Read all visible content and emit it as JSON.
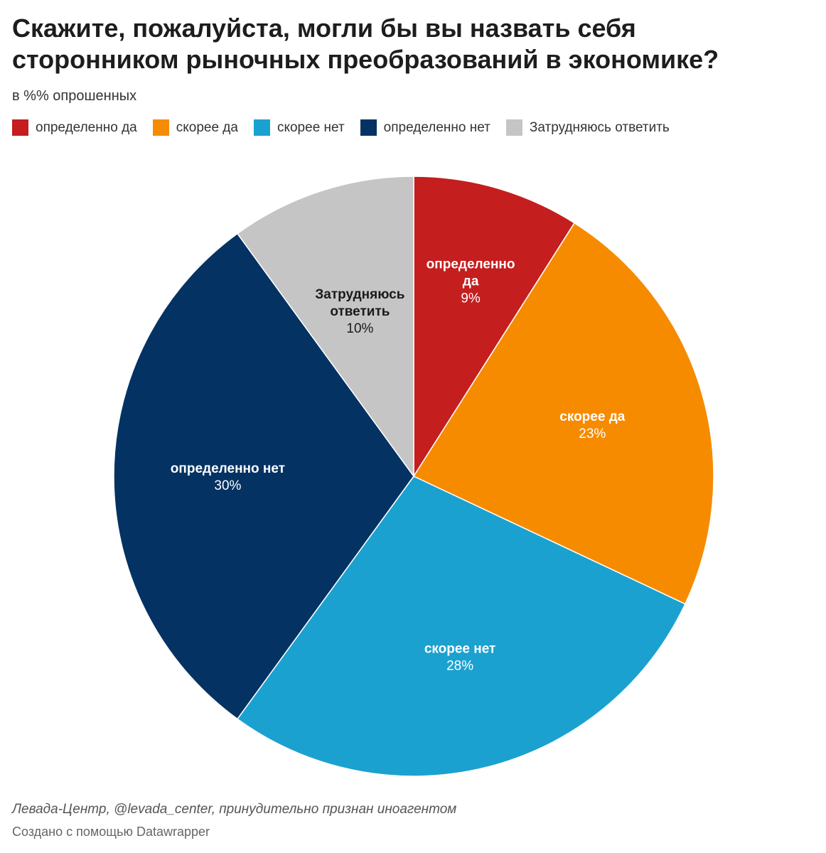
{
  "header": {
    "title": "Скажите, пожалуйста, могли бы вы назвать себя сторонником рыночных преобразований в экономике?",
    "subtitle": "в %% опрошенных"
  },
  "legend": [
    {
      "label": "определенно да",
      "color": "#c41e1e"
    },
    {
      "label": "скорее да",
      "color": "#f68b00"
    },
    {
      "label": "скорее нет",
      "color": "#1ba1cf"
    },
    {
      "label": "определенно нет",
      "color": "#033263"
    },
    {
      "label": "Затрудняюсь ответить",
      "color": "#c5c5c5"
    }
  ],
  "chart_data": {
    "type": "pie",
    "title": "Скажите, пожалуйста, могли бы вы назвать себя сторонником рыночных преобразований в экономике?",
    "unit": "%",
    "slices": [
      {
        "label_lines": [
          "определенно",
          "да"
        ],
        "value": 9,
        "value_label": "9%",
        "color": "#c41e1e",
        "text_color": "#ffffff"
      },
      {
        "label_lines": [
          "скорее да"
        ],
        "value": 23,
        "value_label": "23%",
        "color": "#f68b00",
        "text_color": "#ffffff"
      },
      {
        "label_lines": [
          "скорее нет"
        ],
        "value": 28,
        "value_label": "28%",
        "color": "#1ba1cf",
        "text_color": "#ffffff"
      },
      {
        "label_lines": [
          "определенно нет"
        ],
        "value": 30,
        "value_label": "30%",
        "color": "#033263",
        "text_color": "#ffffff"
      },
      {
        "label_lines": [
          "Затрудняюсь",
          "ответить"
        ],
        "value": 10,
        "value_label": "10%",
        "color": "#c5c5c5",
        "text_color": "#1a1a1a"
      }
    ]
  },
  "footer": {
    "source": "Левада-Центр, @levada_center, принудительно признан иноагентом",
    "credit": "Создано с помощью Datawrapper"
  }
}
